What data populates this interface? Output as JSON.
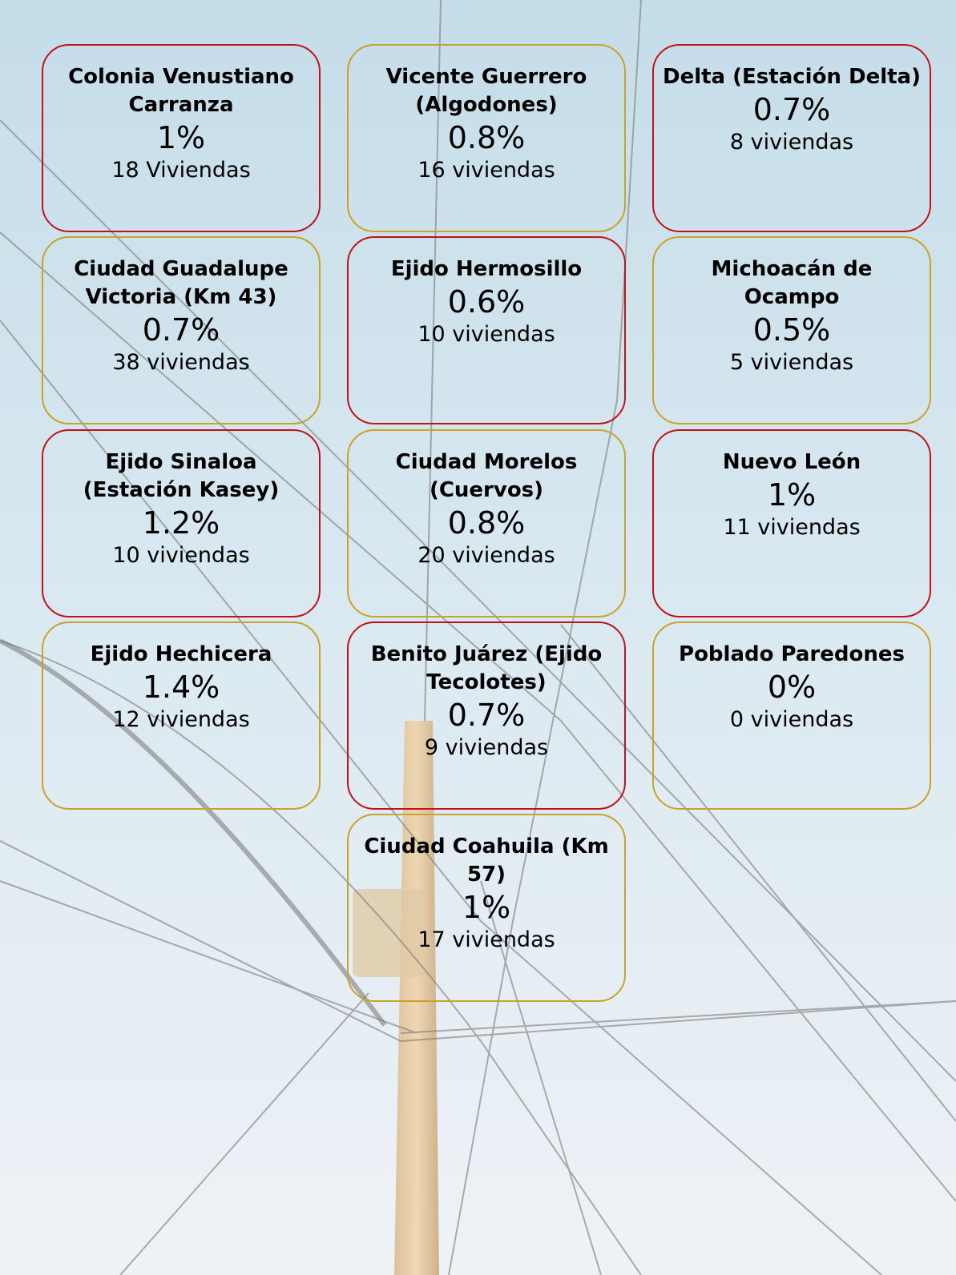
{
  "cards": [
    {
      "name": "Colonia Venustiano Carranza",
      "percent": "1%",
      "households": "18 Viviendas"
    },
    {
      "name": "Vicente Guerrero (Algodones)",
      "percent": "0.8%",
      "households": "16 viviendas"
    },
    {
      "name": "Delta (Estación Delta)",
      "percent": "0.7%",
      "households": "8 viviendas"
    },
    {
      "name": "Ciudad Guadalupe Victoria (Km 43)",
      "percent": "0.7%",
      "households": "38 viviendas"
    },
    {
      "name": "Ejido Hermosillo",
      "percent": "0.6%",
      "households": "10 viviendas"
    },
    {
      "name": "Michoacán de Ocampo",
      "percent": "0.5%",
      "households": "5 viviendas"
    },
    {
      "name": "Ejido Sinaloa (Estación Kasey)",
      "percent": "1.2%",
      "households": "10 viviendas"
    },
    {
      "name": "Ciudad Morelos (Cuervos)",
      "percent": "0.8%",
      "households": "20 viviendas"
    },
    {
      "name": "Nuevo León",
      "percent": "1%",
      "households": "11 viviendas"
    },
    {
      "name": "Ejido Hechicera",
      "percent": "1.4%",
      "households": "12 viviendas"
    },
    {
      "name": "Benito Juárez (Ejido Tecolotes)",
      "percent": "0.7%",
      "households": "9 viviendas"
    },
    {
      "name": "Poblado Paredones",
      "percent": "0%",
      "households": "0 viviendas"
    },
    {
      "name": "Ciudad Coahuila (Km 57)",
      "percent": "1%",
      "households": "17 viviendas"
    }
  ]
}
